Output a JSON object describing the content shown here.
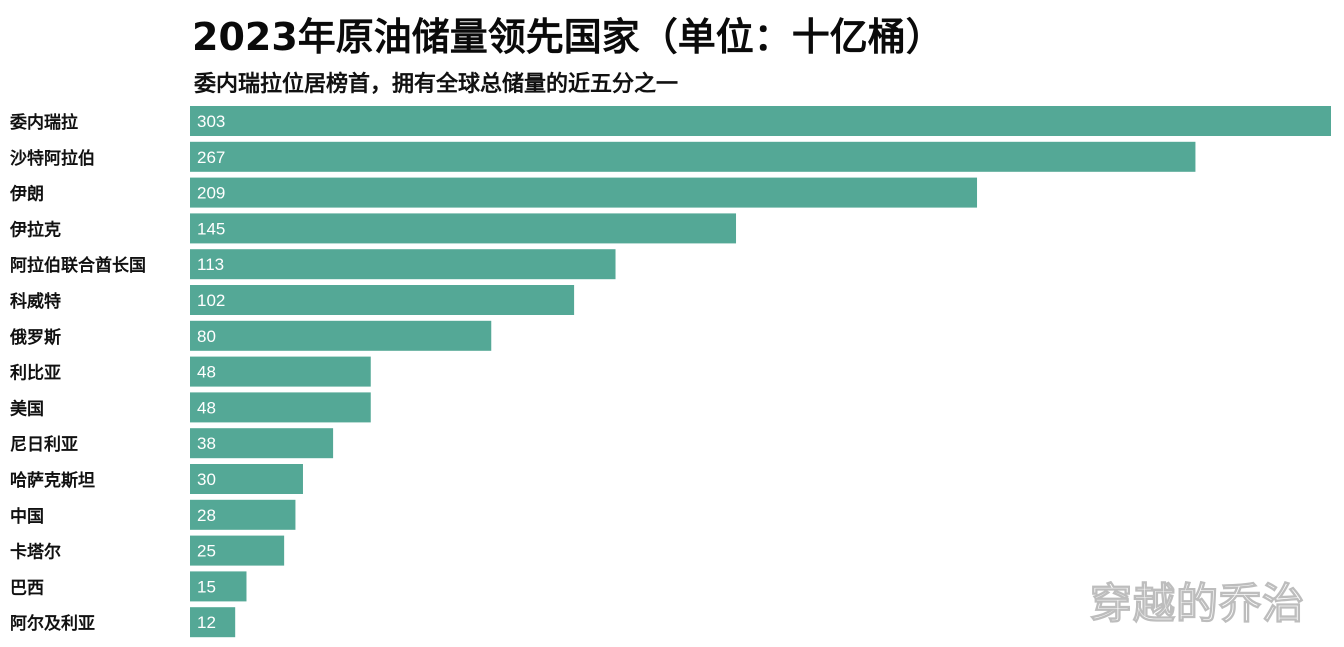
{
  "title": "2023年原油储量领先国家（单位：十亿桶）",
  "subtitle": "委内瑞拉位居榜首，拥有全球总储量的近五分之一",
  "watermark": "穿越的乔治",
  "colors": {
    "bar": "#54a896",
    "bar_label": "#ffffff",
    "category_label": "#111111"
  },
  "chart_data": {
    "type": "bar",
    "orientation": "horizontal",
    "title": "2023年原油储量领先国家（单位：十亿桶）",
    "subtitle": "委内瑞拉位居榜首，拥有全球总储量的近五分之一",
    "categories": [
      "委内瑞拉",
      "沙特阿拉伯",
      "伊朗",
      "伊拉克",
      "阿拉伯联合酋长国",
      "科威特",
      "俄罗斯",
      "利比亚",
      "美国",
      "尼日利亚",
      "哈萨克斯坦",
      "中国",
      "卡塔尔",
      "巴西",
      "阿尔及利亚"
    ],
    "values": [
      303,
      267,
      209,
      145,
      113,
      102,
      80,
      48,
      48,
      38,
      30,
      28,
      25,
      15,
      12
    ],
    "xlim": [
      0,
      303
    ],
    "grid": false,
    "legend": "none"
  }
}
